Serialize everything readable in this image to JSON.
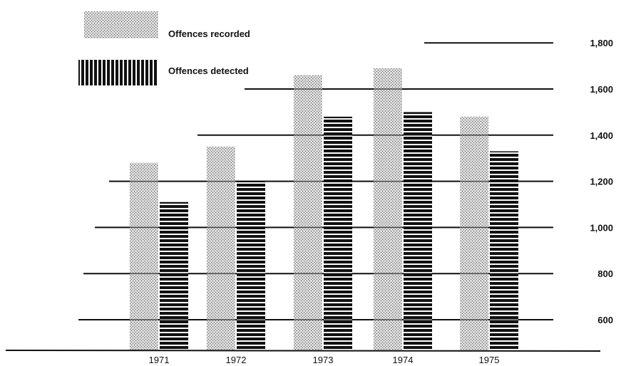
{
  "chart_data": {
    "type": "bar",
    "title": "",
    "xlabel": "",
    "ylabel": "",
    "categories": [
      "1971",
      "1972",
      "1973",
      "1974",
      "1975"
    ],
    "series": [
      {
        "name": "Offences recorded",
        "values": [
          1280,
          1350,
          1660,
          1690,
          1480
        ],
        "pattern": "dots"
      },
      {
        "name": "Offences detected",
        "values": [
          1110,
          1200,
          1480,
          1500,
          1330
        ],
        "pattern": "stripes"
      }
    ],
    "yticks": [
      "600",
      "800",
      "1,000",
      "1,200",
      "1,400",
      "1,600",
      "1,800"
    ],
    "ytick_values": [
      600,
      800,
      1000,
      1200,
      1400,
      1600,
      1800
    ],
    "ylim": [
      0,
      1800
    ],
    "grid": true,
    "legend_position": "top-left",
    "colors": {
      "ink": "#111111",
      "dots_bg": "#d9d9d9",
      "dots_fg": "#555555"
    }
  }
}
